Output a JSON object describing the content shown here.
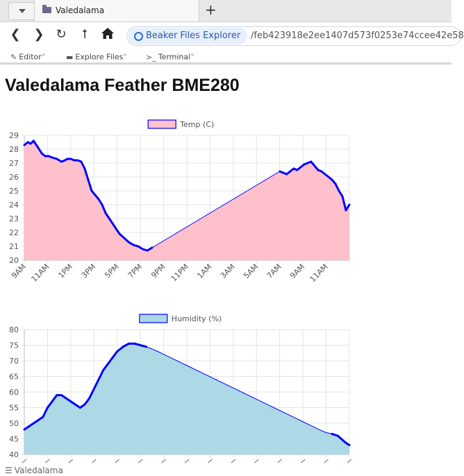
{
  "browser": {
    "tab_title": "Valedalama",
    "new_tab_icon": "+",
    "site_label": "Beaker Files Explorer",
    "url": "/feb423918e2ee1407d573f0253e74ccee42e58",
    "bookmarks": [
      {
        "label": "Editor",
        "icon": "pencil-icon"
      },
      {
        "label": "Explore Files",
        "icon": "folder-icon"
      },
      {
        "label": "Terminal",
        "icon": "terminal-icon"
      }
    ]
  },
  "page": {
    "title": "Valedalama Feather BME280"
  },
  "status": {
    "text": "Valedalama"
  },
  "chart_data": [
    {
      "type": "area",
      "legend": "Temp (C)",
      "legend_placement": "top-center",
      "grid": true,
      "fill_color": "#ffc0cb",
      "line_color": "#0000ff",
      "ylim": [
        20,
        29
      ],
      "yticks": [
        20,
        21,
        22,
        23,
        24,
        25,
        26,
        27,
        28,
        29
      ],
      "x_ticks": [
        "9AM",
        "11AM",
        "1PM",
        "3PM",
        "5PM",
        "7PM",
        "9PM",
        "11PM",
        "1AM",
        "3AM",
        "5AM",
        "7AM",
        "9AM",
        "11AM"
      ],
      "x_hours": [
        0,
        0.3,
        0.55,
        0.8,
        1.2,
        1.5,
        1.8,
        2.1,
        2.4,
        2.8,
        3.2,
        3.5,
        3.7,
        4.0,
        4.3,
        4.6,
        4.9,
        5.2,
        5.5,
        5.8,
        6.1,
        6.4,
        6.7,
        7.0,
        7.4,
        7.8,
        8.2,
        8.6,
        9.0,
        9.4,
        9.8,
        10.2,
        10.6,
        11.0,
        11.4,
        11.8,
        12.2,
        12.6,
        13.0,
        13.3,
        13.6,
        13.9,
        14.2,
        14.5,
        14.8,
        15.1,
        15.4,
        15.7,
        16.0,
        16.3,
        16.6,
        16.9,
        17.2,
        17.5,
        17.8,
        18.1,
        18.4,
        18.7,
        19.0,
        19.3,
        19.6,
        19.9,
        20.2,
        20.5,
        20.8,
        21.1,
        21.4,
        21.7,
        22.0,
        22.3,
        22.6,
        22.9,
        23.2,
        23.5,
        23.8,
        24.1,
        24.4,
        24.7,
        25.0,
        25.3,
        25.6,
        25.9,
        26.2,
        26.5,
        26.8,
        27.1,
        27.4,
        27.7,
        28.0
      ],
      "y": [
        28.3,
        28.5,
        28.4,
        28.6,
        28.1,
        27.7,
        27.5,
        27.5,
        27.4,
        27.3,
        27.1,
        27.2,
        27.3,
        27.3,
        27.2,
        27.2,
        27.1,
        26.6,
        25.8,
        25.0,
        24.7,
        24.4,
        24.0,
        23.4,
        22.9,
        22.4,
        21.9,
        21.6,
        21.3,
        21.1,
        21.0,
        20.8,
        20.7,
        20.9,
        21.1,
        21.3,
        21.5,
        21.7,
        21.9,
        22.05,
        22.2,
        22.35,
        22.5,
        22.65,
        22.8,
        22.95,
        23.1,
        23.25,
        23.4,
        23.55,
        23.7,
        23.85,
        24.0,
        24.15,
        24.3,
        24.45,
        24.6,
        24.75,
        24.9,
        25.05,
        25.2,
        25.35,
        25.5,
        25.65,
        25.8,
        25.95,
        26.1,
        26.25,
        26.4,
        26.3,
        26.2,
        26.4,
        26.6,
        26.5,
        26.7,
        26.9,
        27.0,
        27.1,
        26.8,
        26.5,
        26.4,
        26.2,
        26.0,
        25.8,
        25.5,
        25.0,
        24.6,
        23.6,
        24.0
      ]
    },
    {
      "type": "area",
      "legend": "Humidity (%)",
      "legend_placement": "top-center",
      "grid": true,
      "fill_color": "#add8e6",
      "line_color": "#0000ff",
      "ylim": [
        40,
        80
      ],
      "yticks": [
        40,
        45,
        50,
        55,
        60,
        65,
        70,
        75,
        80
      ],
      "x_hours": [
        0,
        0.4,
        0.8,
        1.2,
        1.6,
        2.0,
        2.4,
        2.8,
        3.2,
        3.6,
        4.0,
        4.4,
        4.8,
        5.2,
        5.6,
        6.0,
        6.4,
        6.8,
        7.2,
        7.6,
        8.0,
        8.5,
        9.0,
        9.5,
        10.0,
        10.5,
        11.0,
        11.5,
        12.0,
        12.5,
        13.0,
        13.5,
        14.0,
        14.5,
        15.0,
        15.5,
        16.0,
        16.5,
        17.0,
        17.5,
        18.0,
        18.5,
        19.0,
        19.5,
        20.0,
        20.5,
        21.0,
        21.5,
        22.0,
        22.5,
        23.0,
        23.5,
        24.0,
        24.5,
        25.0,
        25.5,
        26.0,
        26.5,
        27.0,
        27.3,
        27.6,
        28.0
      ],
      "y": [
        48,
        49,
        50,
        51,
        52,
        55,
        57,
        59,
        59,
        58,
        57,
        56,
        55,
        56,
        58,
        61,
        64,
        67,
        69,
        71,
        73,
        74.5,
        75.5,
        75.5,
        75,
        74.5,
        73.8,
        73,
        72.1,
        71.2,
        70.3,
        69.4,
        68.5,
        67.6,
        66.7,
        65.8,
        64.9,
        64,
        63.1,
        62.2,
        61.3,
        60.4,
        59.5,
        58.6,
        57.7,
        56.8,
        55.9,
        55,
        54.1,
        53.2,
        52.3,
        51.4,
        50.5,
        49.6,
        48.7,
        47.8,
        47,
        46.6,
        46,
        45,
        44,
        43
      ]
    }
  ]
}
